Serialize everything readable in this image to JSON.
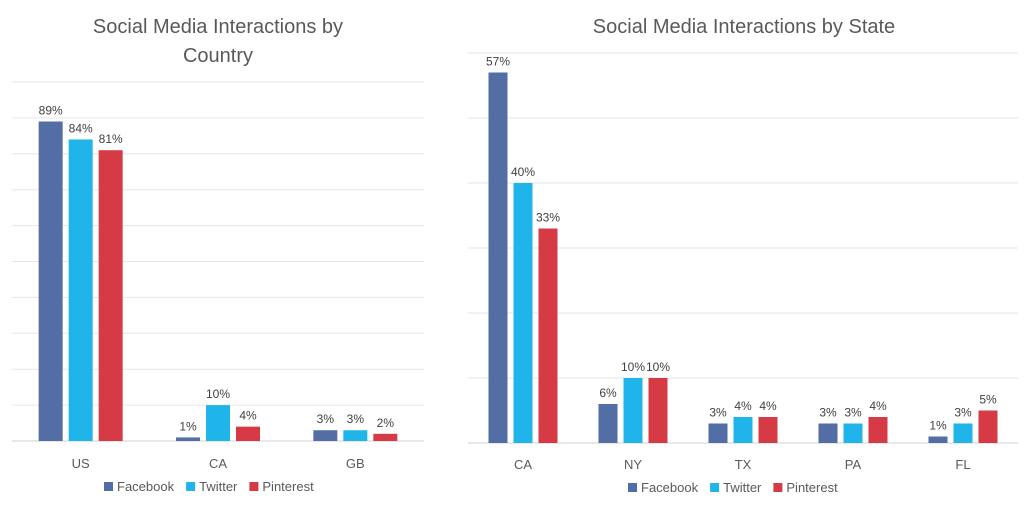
{
  "charts": [
    {
      "id": "left",
      "chart_data": {
        "type": "bar",
        "title_lines": [
          "Social Media Interactions by",
          "Country"
        ],
        "categories": [
          "US",
          "CA",
          "GB"
        ],
        "series": [
          {
            "name": "Facebook",
            "values": [
              89,
              1,
              3
            ],
            "labels": [
              "89%",
              "1%",
              "3%"
            ]
          },
          {
            "name": "Twitter",
            "values": [
              84,
              10,
              3
            ],
            "labels": [
              "84%",
              "10%",
              "3%"
            ]
          },
          {
            "name": "Pinterest",
            "values": [
              81,
              4,
              2
            ],
            "labels": [
              "81%",
              "4%",
              "2%"
            ]
          }
        ],
        "ylim": [
          0,
          100
        ],
        "grid": true,
        "legend": "bottom"
      }
    },
    {
      "id": "right",
      "chart_data": {
        "type": "bar",
        "title_lines": [
          "Social Media Interactions by State"
        ],
        "categories": [
          "CA",
          "NY",
          "TX",
          "PA",
          "FL"
        ],
        "series": [
          {
            "name": "Facebook",
            "values": [
              57,
              6,
              3,
              3,
              1
            ],
            "labels": [
              "57%",
              "6%",
              "3%",
              "3%",
              "1%"
            ]
          },
          {
            "name": "Twitter",
            "values": [
              40,
              10,
              4,
              3,
              3
            ],
            "labels": [
              "40%",
              "10%",
              "4%",
              "3%",
              "3%"
            ]
          },
          {
            "name": "Pinterest",
            "values": [
              33,
              10,
              4,
              4,
              5
            ],
            "labels": [
              "33%",
              "10%",
              "4%",
              "4%",
              "5%"
            ]
          }
        ],
        "ylim": [
          0,
          60
        ],
        "grid": true,
        "legend": "bottom"
      }
    }
  ],
  "colors": {
    "Facebook": "#536ea5",
    "Twitter": "#1fb5ea",
    "Pinterest": "#d63a44",
    "grid": "#e6e6e6",
    "axis": "#d0d0d0"
  }
}
